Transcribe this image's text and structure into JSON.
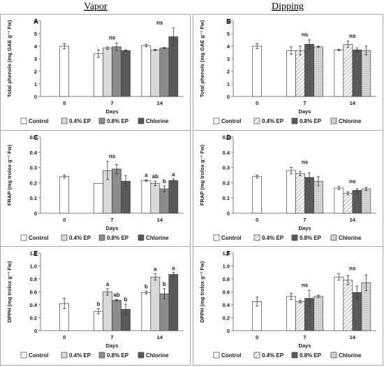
{
  "column_titles": [
    "Vapor",
    "Dipping"
  ],
  "patterns": {
    "Control": "white",
    "0.4% EP": "light-gray",
    "0.8% EP": "mid-gray",
    "Chlorine": "dark-gray",
    "Dipping 0.4% EP": "diagonal-hatch",
    "Dipping 0.8% EP": "dark-gray",
    "Dipping Chlorine": "grid-hatch"
  },
  "colors": {
    "white": "#ffffff",
    "light-gray": "#d9d9d9",
    "mid-gray": "#8c8c8c",
    "dark-gray": "#595959",
    "axis": "#7f7f7f"
  },
  "chart_data": [
    {
      "panel": "A",
      "method": "Vapor",
      "type": "bar",
      "ylabel": "Total phenols (mg GAE g⁻¹ Fw)",
      "xlabel": "Days",
      "ylim": [
        0,
        6
      ],
      "yticks": [
        "0",
        "1",
        "2",
        "3",
        "4",
        "5",
        "6"
      ],
      "categories": [
        "0",
        "7",
        "14"
      ],
      "legend": [
        "Control",
        "0.4% EP",
        "0.8% EP",
        "Chlorine"
      ],
      "legend_position": "bottom",
      "series": [
        {
          "name": "Control",
          "values": [
            4.0,
            3.4,
            4.05
          ],
          "errors": [
            0.2,
            0.3,
            0.1
          ]
        },
        {
          "name": "0.4% EP",
          "values": [
            null,
            3.85,
            3.7
          ],
          "errors": [
            null,
            0.1,
            0.05
          ]
        },
        {
          "name": "0.8% EP",
          "values": [
            null,
            3.95,
            3.85
          ],
          "errors": [
            null,
            0.3,
            0.05
          ]
        },
        {
          "name": "Chlorine",
          "values": [
            null,
            3.65,
            4.75
          ],
          "errors": [
            null,
            0.05,
            0.7
          ]
        }
      ],
      "annotations": [
        {
          "category": "7",
          "text": "ns"
        },
        {
          "category": "14",
          "text": "ns"
        }
      ]
    },
    {
      "panel": "B",
      "method": "Dipping",
      "type": "bar",
      "ylabel": "Total phenols (mg GAE g⁻¹ Fw)",
      "xlabel": "Days",
      "ylim": [
        0,
        6
      ],
      "yticks": [
        "0",
        "1",
        "2",
        "3",
        "4",
        "5",
        "6"
      ],
      "categories": [
        "0",
        "7",
        "14"
      ],
      "legend": [
        "Control",
        "0.4% EP",
        "0.8% EP",
        "Chlorine"
      ],
      "legend_position": "bottom",
      "series": [
        {
          "name": "Control",
          "values": [
            4.0,
            3.65,
            3.7
          ],
          "errors": [
            0.2,
            0.3,
            0.05
          ]
        },
        {
          "name": "0.4% EP",
          "values": [
            null,
            3.65,
            4.15
          ],
          "errors": [
            null,
            0.35,
            0.25
          ]
        },
        {
          "name": "0.8% EP",
          "values": [
            null,
            4.15,
            3.7
          ],
          "errors": [
            null,
            0.35,
            0.15
          ]
        },
        {
          "name": "Chlorine",
          "values": [
            null,
            3.95,
            3.65
          ],
          "errors": [
            null,
            0.05,
            0.35
          ]
        }
      ],
      "annotations": [
        {
          "category": "7",
          "text": "ns"
        },
        {
          "category": "14",
          "text": "ns"
        }
      ]
    },
    {
      "panel": "C",
      "method": "Vapor",
      "type": "bar",
      "ylabel": "FRAP (mg trolox g⁻¹ Fw)",
      "xlabel": "Days",
      "ylim": [
        0,
        0.5
      ],
      "yticks": [
        "0",
        "0.1",
        "0.2",
        "0.3",
        "0.4",
        "0.5"
      ],
      "categories": [
        "0",
        "7",
        "14"
      ],
      "legend": [
        "Control",
        "0.4% EP",
        "0.8% EP",
        "Chlorine"
      ],
      "legend_position": "bottom",
      "series": [
        {
          "name": "Control",
          "values": [
            0.24,
            0.195,
            0.215
          ],
          "errors": [
            0.01,
            0,
            0.005
          ]
        },
        {
          "name": "0.4% EP",
          "values": [
            null,
            0.28,
            0.195
          ],
          "errors": [
            null,
            0.06,
            0.015
          ]
        },
        {
          "name": "0.8% EP",
          "values": [
            null,
            0.29,
            0.16
          ],
          "errors": [
            null,
            0.03,
            0.02
          ]
        },
        {
          "name": "Chlorine",
          "values": [
            null,
            0.21,
            0.215
          ],
          "errors": [
            null,
            0.035,
            0.01
          ]
        }
      ],
      "annotations": [
        {
          "category": "7",
          "text": "ns"
        },
        {
          "category": "14",
          "series": "Control",
          "text": "a"
        },
        {
          "category": "14",
          "series": "0.4% EP",
          "text": "ab"
        },
        {
          "category": "14",
          "series": "0.8% EP",
          "text": "b"
        },
        {
          "category": "14",
          "series": "Chlorine",
          "text": "a"
        }
      ]
    },
    {
      "panel": "D",
      "method": "Dipping",
      "type": "bar",
      "ylabel": "FRAP (mg trolox g⁻¹ Fw)",
      "xlabel": "Days",
      "ylim": [
        0,
        0.5
      ],
      "yticks": [
        "0",
        "0.1",
        "0.2",
        "0.3",
        "0.4",
        "0.5"
      ],
      "categories": [
        "0",
        "7",
        "14"
      ],
      "legend": [
        "Control",
        "0.4% EP",
        "0.8% EP",
        "Chlorine"
      ],
      "legend_position": "bottom",
      "series": [
        {
          "name": "Control",
          "values": [
            0.24,
            0.28,
            0.165
          ],
          "errors": [
            0.01,
            0.02,
            0.01
          ]
        },
        {
          "name": "0.4% EP",
          "values": [
            null,
            0.26,
            0.13
          ],
          "errors": [
            null,
            0.015,
            0.01
          ]
        },
        {
          "name": "0.8% EP",
          "values": [
            null,
            0.235,
            0.15
          ],
          "errors": [
            null,
            0.03,
            0.01
          ]
        },
        {
          "name": "Chlorine",
          "values": [
            null,
            0.21,
            0.16
          ],
          "errors": [
            null,
            0.03,
            0.01
          ]
        }
      ],
      "annotations": [
        {
          "category": "7",
          "text": "ns"
        },
        {
          "category": "14",
          "text": "ns"
        }
      ]
    },
    {
      "panel": "E",
      "method": "Vapor",
      "type": "bar",
      "ylabel": "DPPH (mg trolox g⁻¹ Fw)",
      "xlabel": "Days",
      "ylim": [
        0,
        1.2
      ],
      "yticks": [
        "0",
        "0.2",
        "0.4",
        "0.6",
        "0.8",
        "1.0",
        "1.2"
      ],
      "categories": [
        "0",
        "7",
        "14"
      ],
      "legend": [
        "Control",
        "0.4% EP",
        "0.8% EP",
        "Chlorine"
      ],
      "legend_position": "bottom",
      "series": [
        {
          "name": "Control",
          "values": [
            0.42,
            0.3,
            0.59
          ],
          "errors": [
            0.08,
            0.04,
            0.02
          ]
        },
        {
          "name": "0.4% EP",
          "values": [
            null,
            0.6,
            0.83
          ],
          "errors": [
            null,
            0.05,
            0.05
          ]
        },
        {
          "name": "0.8% EP",
          "values": [
            null,
            0.47,
            0.57
          ],
          "errors": [
            null,
            0.01,
            0.08
          ]
        },
        {
          "name": "Chlorine",
          "values": [
            null,
            0.33,
            0.87
          ],
          "errors": [
            null,
            0.08,
            0.03
          ]
        }
      ],
      "annotations": [
        {
          "category": "7",
          "series": "Control",
          "text": "b"
        },
        {
          "category": "7",
          "series": "0.4% EP",
          "text": "a"
        },
        {
          "category": "7",
          "series": "0.8% EP",
          "text": "ab"
        },
        {
          "category": "7",
          "series": "Chlorine",
          "text": "b"
        },
        {
          "category": "14",
          "series": "Control",
          "text": "b"
        },
        {
          "category": "14",
          "series": "0.4% EP",
          "text": "a"
        },
        {
          "category": "14",
          "series": "0.8% EP",
          "text": "b"
        },
        {
          "category": "14",
          "series": "Chlorine",
          "text": "a"
        }
      ]
    },
    {
      "panel": "F",
      "method": "Dipping",
      "type": "bar",
      "ylabel": "DPPH (mg trolox g⁻¹ Fw)",
      "xlabel": "Days",
      "ylim": [
        0,
        1.2
      ],
      "yticks": [
        "0",
        "0.2",
        "0.4",
        "0.6",
        "0.8",
        "1.0",
        "1.2"
      ],
      "categories": [
        "0",
        "7",
        "14"
      ],
      "legend": [
        "Control",
        "0.4% EP",
        "0.8% EP",
        "Chlorine"
      ],
      "legend_position": "bottom",
      "series": [
        {
          "name": "Control",
          "values": [
            0.45,
            0.53,
            0.83
          ],
          "errors": [
            0.07,
            0.05,
            0.05
          ]
        },
        {
          "name": "0.4% EP",
          "values": [
            null,
            0.45,
            0.78
          ],
          "errors": [
            null,
            0.02,
            0.07
          ]
        },
        {
          "name": "0.8% EP",
          "values": [
            null,
            0.5,
            0.59
          ],
          "errors": [
            null,
            0.12,
            0.1
          ]
        },
        {
          "name": "Chlorine",
          "values": [
            null,
            0.53,
            0.74
          ],
          "errors": [
            null,
            0.02,
            0.12
          ]
        }
      ],
      "annotations": [
        {
          "category": "7",
          "text": "ns"
        },
        {
          "category": "14",
          "text": "ns"
        }
      ]
    }
  ]
}
